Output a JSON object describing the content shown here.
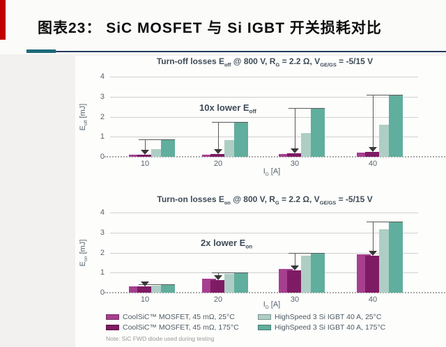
{
  "header": {
    "title": "图表23： SiC MOSFET 与 Si IGBT 开关损耗对比"
  },
  "colors": {
    "accent_red": "#c00000",
    "underline_navy": "#22395c",
    "underline_teal": "#1d6a78",
    "mosfet_25": "#a63f8f",
    "mosfet_175": "#7f1b64",
    "igbt_25": "#aecec5",
    "igbt_175": "#60ae9d",
    "axis_text": "#55626b",
    "grid": "#d0d0d0",
    "bracket": "#5a5a5a"
  },
  "chart_data": [
    {
      "type": "bar",
      "title": "Turn-off losses Eoff @ 800 V, RG = 2.2 Ω, VGE/GS = -5/15 V",
      "title_segments": [
        {
          "text": "Turn-off losses E"
        },
        {
          "text": "off",
          "sub": true
        },
        {
          "text": " @ 800 V, R"
        },
        {
          "text": "G",
          "sub": true
        },
        {
          "text": " = 2.2 Ω, V"
        },
        {
          "text": "GE/GS",
          "sub": true
        },
        {
          "text": " = -5/15 V"
        }
      ],
      "ylabel": "Eoff [mJ]",
      "ylabel_segments": [
        {
          "text": "E"
        },
        {
          "text": "off",
          "sub": true
        },
        {
          "text": " [mJ]"
        }
      ],
      "xlabel": "ID [A]",
      "xlabel_segments": [
        {
          "text": "I"
        },
        {
          "text": "D",
          "sub": true
        },
        {
          "text": " [A]"
        }
      ],
      "categories": [
        "10",
        "20",
        "30",
        "40"
      ],
      "ylim": [
        0,
        4
      ],
      "yticks": [
        0,
        1,
        2,
        3,
        4
      ],
      "grid": true,
      "series": [
        {
          "name": "CoolSiC™ MOSFET, 45 mΩ, 25°C",
          "color": "#a63f8f",
          "values": [
            0.1,
            0.12,
            0.15,
            0.22
          ]
        },
        {
          "name": "CoolSiC™ MOSFET, 45 mΩ, 175°C",
          "color": "#7f1b64",
          "values": [
            0.12,
            0.14,
            0.16,
            0.25
          ]
        },
        {
          "name": "HighSpeed 3 Si IGBT 40 A, 25°C",
          "color": "#aecec5",
          "values": [
            0.4,
            0.85,
            1.2,
            1.6
          ]
        },
        {
          "name": "HighSpeed 3 Si IGBT 40 A, 175°C",
          "color": "#60ae9d",
          "values": [
            0.88,
            1.75,
            2.45,
            3.1
          ]
        }
      ],
      "annotation": "10x lower Eoff",
      "annotation_segments": [
        {
          "text": "10x lower E"
        },
        {
          "text": "off",
          "sub": true
        }
      ],
      "brackets": "arrow from Si IGBT 175°C bar top down to SiC MOSFET bar top in each group"
    },
    {
      "type": "bar",
      "title": "Turn-on losses Eon @ 800 V, RG = 2.2 Ω, VGE/GS = -5/15 V",
      "title_segments": [
        {
          "text": "Turn-on losses E"
        },
        {
          "text": "on",
          "sub": true
        },
        {
          "text": " @ 800 V, R"
        },
        {
          "text": "G",
          "sub": true
        },
        {
          "text": " = 2.2 Ω, V"
        },
        {
          "text": "GE/GS",
          "sub": true
        },
        {
          "text": " = -5/15 V"
        }
      ],
      "ylabel": "Eon [mJ]",
      "ylabel_segments": [
        {
          "text": "E"
        },
        {
          "text": "on",
          "sub": true
        },
        {
          "text": " [mJ]"
        }
      ],
      "xlabel": "ID [A]",
      "xlabel_segments": [
        {
          "text": "I"
        },
        {
          "text": "D",
          "sub": true
        },
        {
          "text": " [A]"
        }
      ],
      "categories": [
        "10",
        "20",
        "30",
        "40"
      ],
      "ylim": [
        0,
        4
      ],
      "yticks": [
        0,
        1,
        2,
        3,
        4
      ],
      "grid": true,
      "series": [
        {
          "name": "CoolSiC™ MOSFET, 45 mΩ, 25°C",
          "color": "#a63f8f",
          "values": [
            0.3,
            0.68,
            1.18,
            1.9
          ]
        },
        {
          "name": "CoolSiC™ MOSFET, 45 mΩ, 175°C",
          "color": "#7f1b64",
          "values": [
            0.3,
            0.62,
            1.12,
            1.85
          ]
        },
        {
          "name": "HighSpeed 3 Si IGBT 40 A, 25°C",
          "color": "#aecec5",
          "values": [
            0.35,
            0.95,
            1.85,
            3.15
          ]
        },
        {
          "name": "HighSpeed 3 Si IGBT 40 A, 175°C",
          "color": "#60ae9d",
          "values": [
            0.42,
            1.02,
            2.0,
            3.55
          ]
        }
      ],
      "annotation": "2x lower Eon",
      "annotation_segments": [
        {
          "text": "2x lower E"
        },
        {
          "text": "on",
          "sub": true
        }
      ],
      "brackets": "arrow from Si IGBT 175°C bar top down to SiC MOSFET bar top in each group"
    }
  ],
  "legend": {
    "items": [
      {
        "label": "CoolSiC™ MOSFET, 45 mΩ, 25°C",
        "color": "#a63f8f"
      },
      {
        "label": "CoolSiC™ MOSFET, 45 mΩ, 175°C",
        "color": "#7f1b64"
      },
      {
        "label": "HighSpeed 3 Si IGBT 40 A, 25°C",
        "color": "#aecec5"
      },
      {
        "label": "HighSpeed 3 Si IGBT 40 A, 175°C",
        "color": "#60ae9d"
      }
    ]
  },
  "note": "Note: SiC FWD diode used during testing"
}
